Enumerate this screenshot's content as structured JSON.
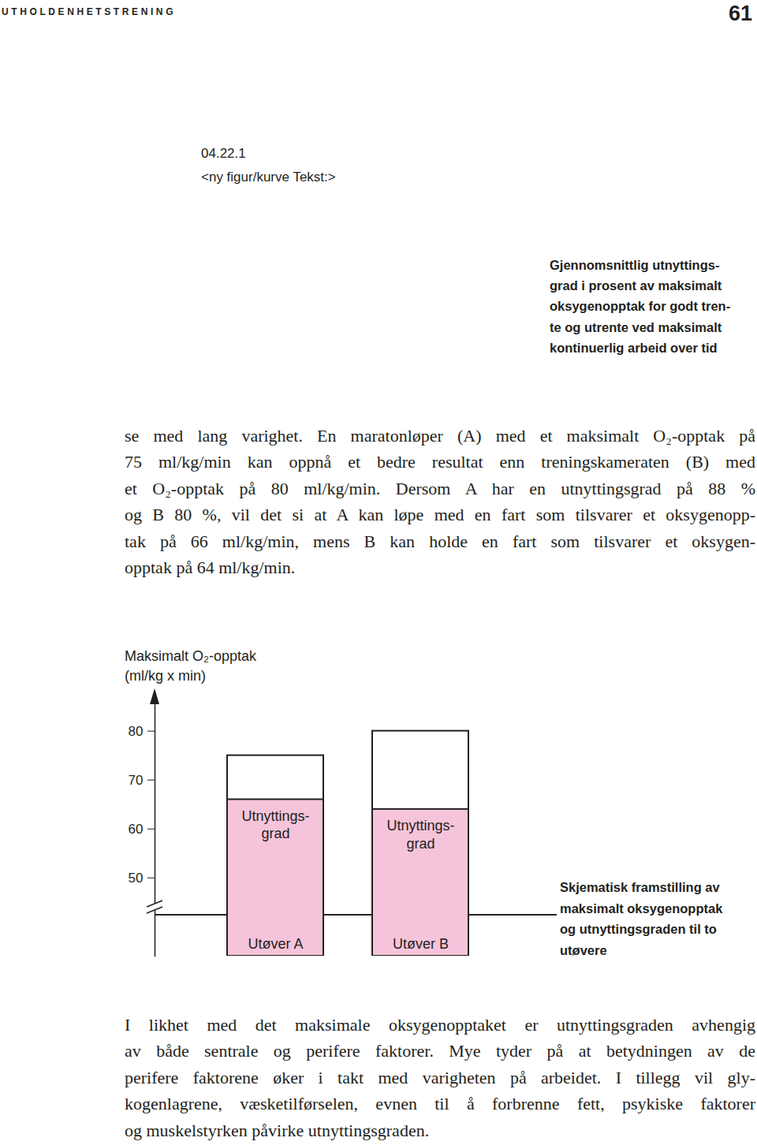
{
  "header": {
    "running_title": "UTHOLDENHETSTRENING",
    "page_number": "61"
  },
  "figure_placeholder": {
    "id": "04.22.1",
    "note": "<ny figur/kurve Tekst:>",
    "caption": [
      "Gjennomsnittlig utnyttings-",
      "grad i prosent av maksimalt",
      "oksygenopptak for godt tren-",
      "te og utrente ved maksimalt",
      "kontinuerlig arbeid over tid"
    ]
  },
  "body": {
    "paragraph1": [
      "se med lang varighet. En maratonløper (A) med et maksimalt O₂-opptak på",
      "75 ml/kg/min kan oppnå et bedre resultat enn treningskameraten (B) med",
      "et O₂-opptak på 80 ml/kg/min. Dersom A har en utnyttingsgrad på 88 %",
      "og B 80 %, vil det si at A kan løpe med en fart som tilsvarer et oksygenopp-",
      "tak på 66 ml/kg/min, mens B kan holde en fart som tilsvarer et oksygen-",
      "opptak på 64 ml/kg/min."
    ],
    "paragraph2": [
      "I likhet med det maksimale oksygenopptaket er utnyttingsgraden avhengig",
      "av både sentrale og perifere faktorer. Mye tyder på at betydningen av de",
      "perifere faktorene øker i takt med varigheten på arbeidet. I tillegg vil gly-",
      "kogenlagrene, væsketilførselen, evnen til å forbrenne fett, psykiske faktorer",
      "og muskelstyrken påvirke utnyttingsgraden."
    ]
  },
  "chart_data": {
    "type": "bar",
    "y_label": [
      "Maksimalt O₂-opptak",
      "(ml/kg x min)"
    ],
    "categories": [
      "Utøver A",
      "Utøver B"
    ],
    "series": [
      {
        "values": [
          75,
          80
        ],
        "color": "#ffffff"
      },
      {
        "name": "Utnyttings-\ngrad",
        "values": [
          66,
          64
        ],
        "color": "#f6c4da"
      }
    ],
    "stacked": false,
    "ylim": [
      34,
      88
    ],
    "yticks": [
      50,
      60,
      70,
      80
    ],
    "caption": [
      "Skjematisk framstilling av",
      "maksimalt oksygenopptak",
      "og utnyttingsgraden til to",
      "utøvere"
    ]
  }
}
